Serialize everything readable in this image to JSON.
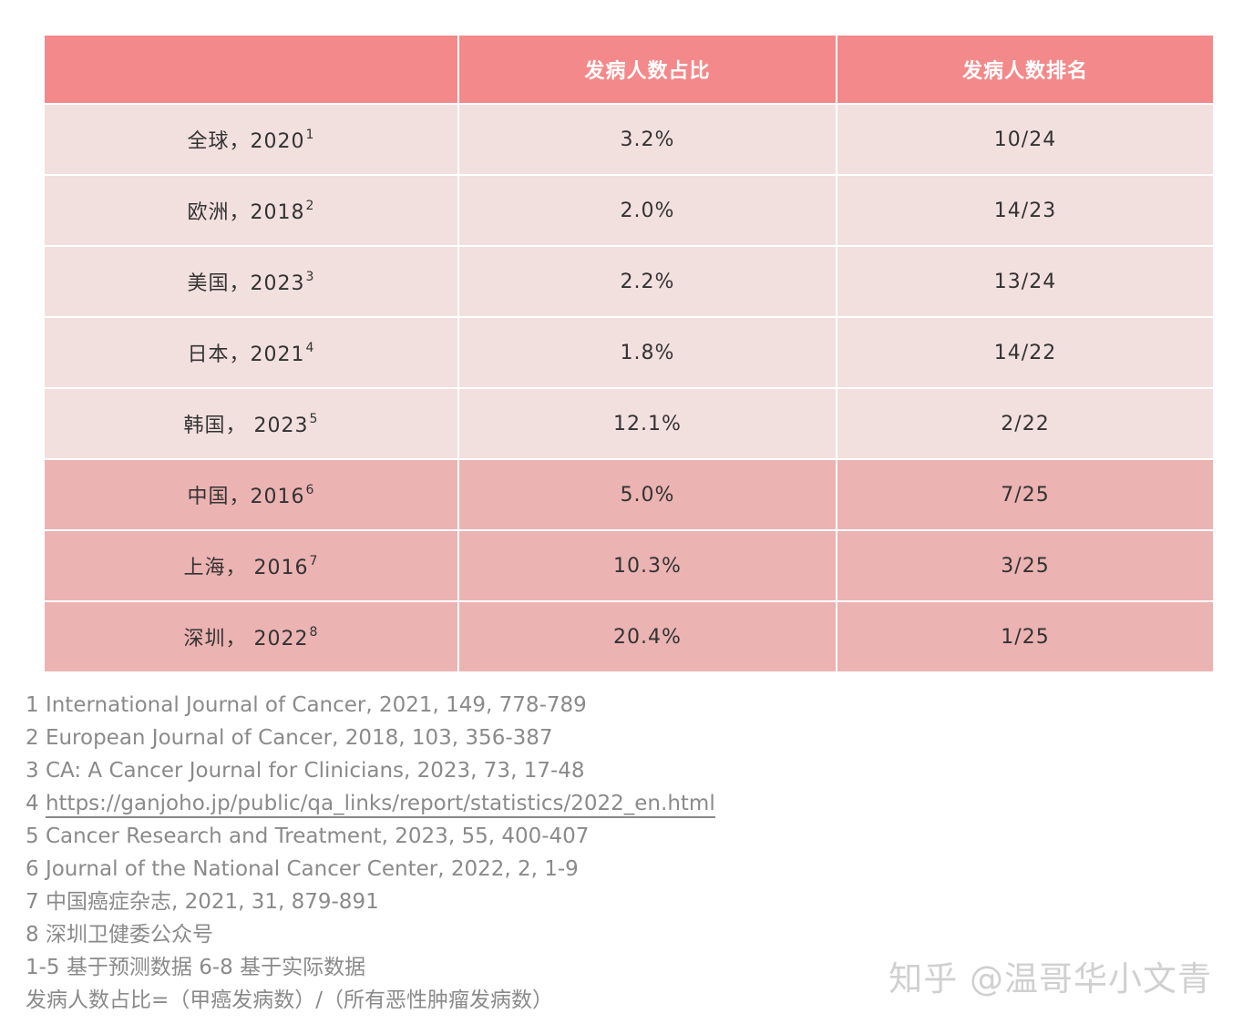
{
  "table": {
    "headers": [
      "",
      "发病人数占比",
      "发病人数排名"
    ],
    "rows": [
      {
        "region": "全球，2020",
        "ref": "1",
        "share": "3.2%",
        "rank": "10/24",
        "group": "forecast"
      },
      {
        "region": "欧洲，2018",
        "ref": "2",
        "share": "2.0%",
        "rank": "14/23",
        "group": "forecast"
      },
      {
        "region": "美国，2023",
        "ref": "3",
        "share": "2.2%",
        "rank": "13/24",
        "group": "forecast"
      },
      {
        "region": "日本，2021",
        "ref": "4",
        "share": "1.8%",
        "rank": "14/22",
        "group": "forecast"
      },
      {
        "region": "韩国， 2023",
        "ref": "5",
        "share": "12.1%",
        "rank": "2/22",
        "group": "forecast"
      },
      {
        "region": "中国，2016",
        "ref": "6",
        "share": "5.0%",
        "rank": "7/25",
        "group": "actual"
      },
      {
        "region": "上海， 2016",
        "ref": "7",
        "share": "10.3%",
        "rank": "3/25",
        "group": "actual"
      },
      {
        "region": "深圳， 2022",
        "ref": "8",
        "share": "20.4%",
        "rank": "1/25",
        "group": "actual"
      }
    ]
  },
  "colors": {
    "header_bg": "#f3898a",
    "forecast_row_bg": "#f2e0de",
    "actual_row_bg": "#ebb3b2"
  },
  "footnotes": {
    "ref1": "1 International Journal of Cancer, 2021, 149, 778-789",
    "ref2": "2 European Journal of Cancer, 2018, 103, 356-387",
    "ref3": "3 CA: A Cancer Journal for Clinicians, 2023, 73, 17-48",
    "ref4_prefix": "4 ",
    "ref4_url": "https://ganjoho.jp/public/qa_links/report/statistics/2022_en.html",
    "ref5": "5 Cancer Research and Treatment, 2023, 55, 400-407",
    "ref6": "6 Journal of the National Cancer Center, 2022, 2, 1-9",
    "ref7": "7 中国癌症杂志, 2021, 31, 879-891",
    "ref8": "8 深圳卫健委公众号",
    "basis": "1-5 基于预测数据 6-8 基于实际数据",
    "formula": "发病人数占比=（甲癌发病数）/（所有恶性肿瘤发病数）"
  },
  "watermark": "知乎 @温哥华小文青"
}
